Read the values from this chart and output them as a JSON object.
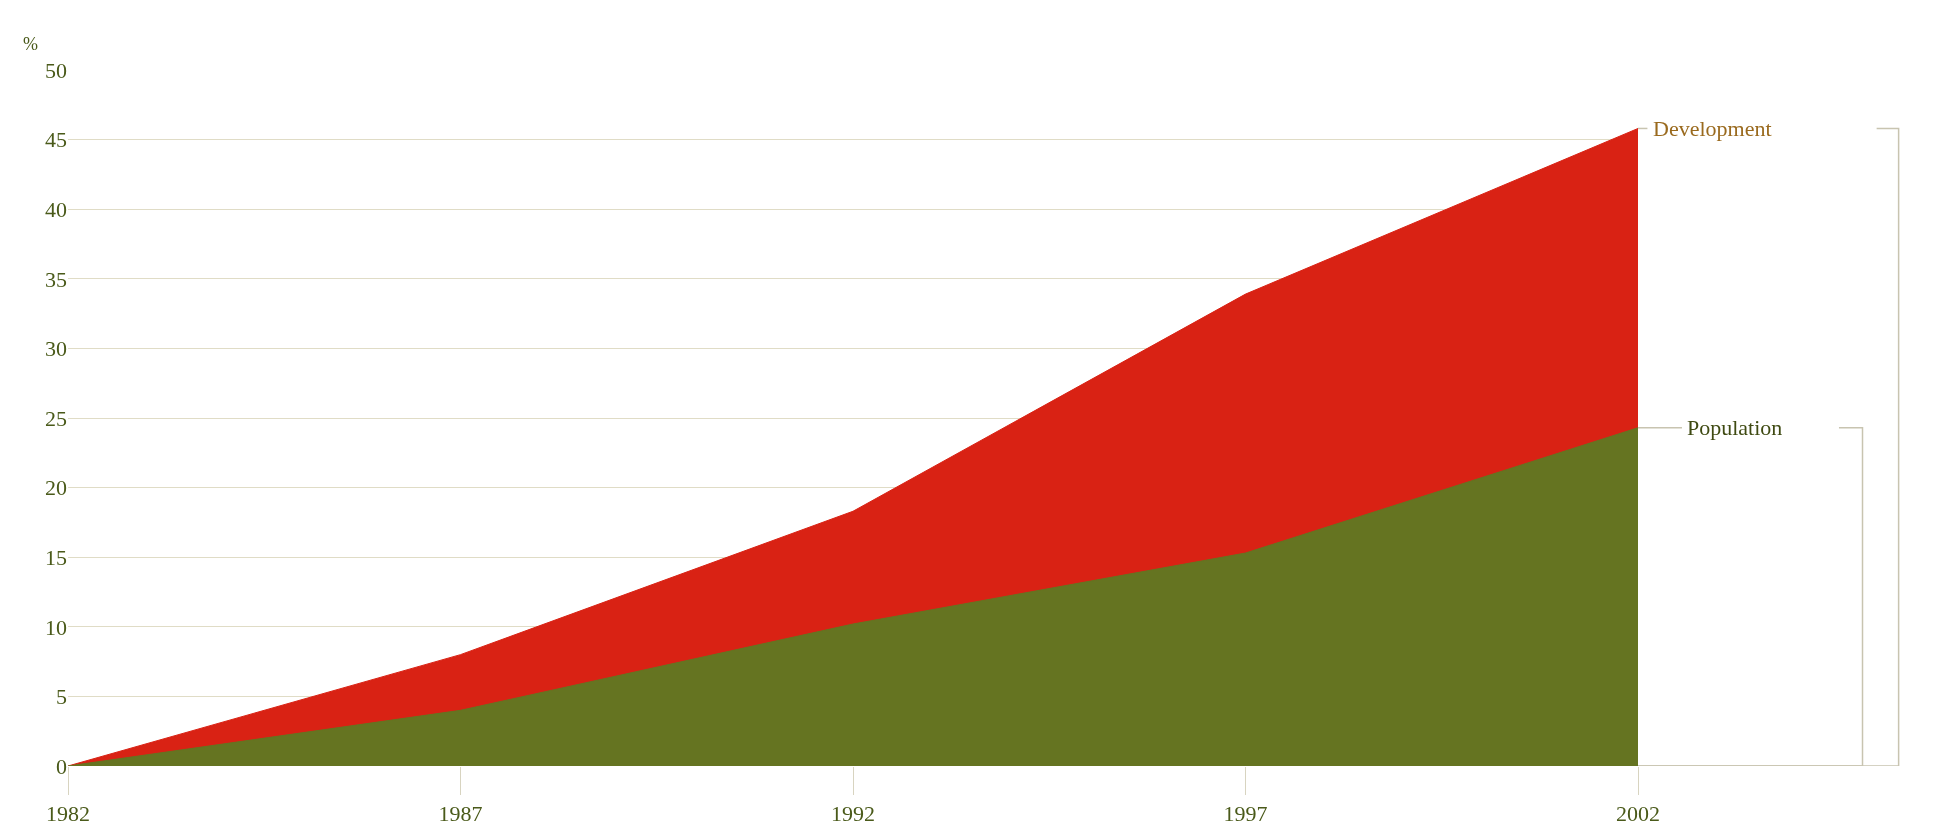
{
  "chart_data": {
    "type": "area",
    "ylabel": "%",
    "x": [
      1982,
      1987,
      1992,
      1997,
      2002
    ],
    "series": [
      {
        "name": "Development",
        "color": "#d92214",
        "values": [
          0,
          8.0,
          18.3,
          33.9,
          45.8
        ]
      },
      {
        "name": "Population",
        "color": "#657421",
        "values": [
          0,
          4.0,
          10.2,
          15.3,
          24.3
        ]
      }
    ],
    "xlim": [
      1982,
      2002
    ],
    "xticks": [
      1982,
      1987,
      1992,
      1997,
      2002
    ],
    "ylim": [
      0,
      50
    ],
    "yticks": [
      0,
      5,
      10,
      15,
      20,
      25,
      30,
      35,
      40,
      45,
      50
    ],
    "grid": "y"
  }
}
